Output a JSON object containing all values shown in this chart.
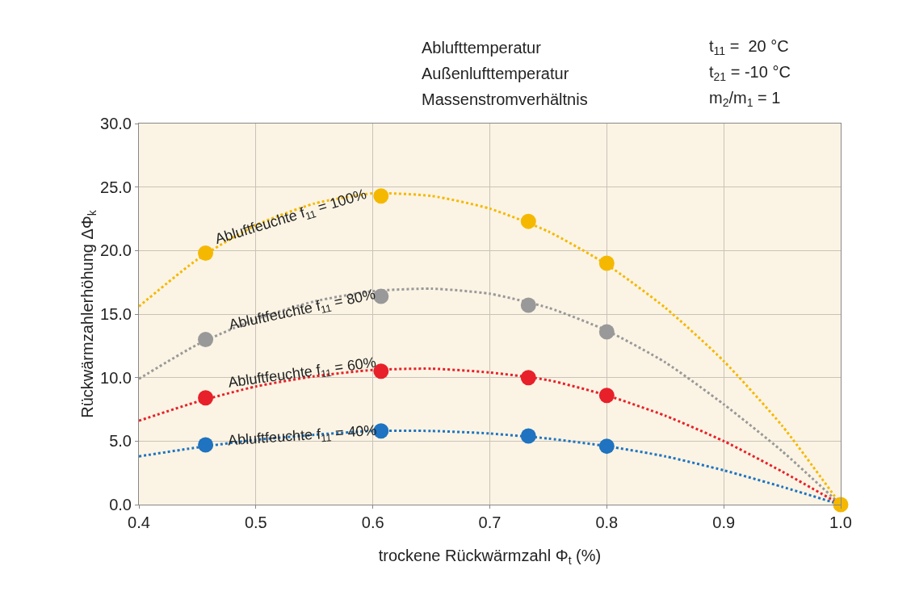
{
  "chart_data": {
    "type": "scatter",
    "xlabel": "trockene Rückwärmzahl Φ$_{t}$ (%)",
    "ylabel": "Rückwärmzahlerhöhung ΔΦ$_{k}$",
    "xlim": [
      0.4,
      1.0
    ],
    "xticks": [
      0.4,
      0.5,
      0.6,
      0.7,
      0.8,
      0.9,
      {
        "value": 1.0,
        "label": "1.0"
      }
    ],
    "ylim": [
      0,
      30
    ],
    "yticks": [
      {
        "value": 0,
        "label": "0.0"
      },
      {
        "value": 5,
        "label": "5.0"
      },
      {
        "value": 10,
        "label": "10.0"
      },
      {
        "value": 15,
        "label": "15.0"
      },
      {
        "value": 20,
        "label": "20.0"
      },
      {
        "value": 25,
        "label": "25.0"
      },
      {
        "value": 30,
        "label": "30.0"
      }
    ],
    "grid": true,
    "series": [
      {
        "type": "line",
        "color": "#f5b800",
        "line_style": "dotted",
        "marker": "none",
        "x": [
          0.4,
          0.45,
          0.5,
          0.55,
          0.6,
          0.65,
          0.7,
          0.75,
          0.8,
          0.85,
          0.9,
          0.95,
          1.0
        ],
        "values": [
          15.6,
          19.3,
          22.0,
          23.7,
          24.5,
          24.3,
          23.3,
          21.5,
          18.9,
          15.5,
          11.3,
          6.2,
          0
        ]
      },
      {
        "type": "line",
        "color": "#999999",
        "line_style": "dotted",
        "marker": "none",
        "x": [
          0.4,
          0.45,
          0.5,
          0.55,
          0.6,
          0.65,
          0.7,
          0.75,
          0.8,
          0.85,
          0.9,
          0.95,
          1.0
        ],
        "values": [
          9.9,
          12.6,
          14.6,
          16.0,
          16.8,
          17.0,
          16.6,
          15.5,
          13.7,
          11.2,
          7.9,
          4.2,
          0
        ]
      },
      {
        "type": "line",
        "color": "#e8202a",
        "line_style": "dotted",
        "marker": "none",
        "x": [
          0.4,
          0.45,
          0.5,
          0.55,
          0.6,
          0.65,
          0.7,
          0.75,
          0.8,
          0.85,
          0.9,
          0.95,
          1.0
        ],
        "values": [
          6.6,
          8.1,
          9.3,
          10.1,
          10.6,
          10.7,
          10.4,
          9.8,
          8.6,
          7.0,
          5.0,
          2.6,
          0
        ]
      },
      {
        "type": "line",
        "color": "#1f73c0",
        "line_style": "dotted",
        "marker": "none",
        "x": [
          0.4,
          0.45,
          0.5,
          0.55,
          0.6,
          0.65,
          0.7,
          0.75,
          0.8,
          0.85,
          0.9,
          0.95,
          1.0
        ],
        "values": [
          3.8,
          4.5,
          5.1,
          5.5,
          5.8,
          5.8,
          5.6,
          5.2,
          4.6,
          3.8,
          2.7,
          1.4,
          0
        ]
      },
      {
        "type": "scatter",
        "color": "#999999",
        "marker": "circle",
        "x": [
          0.457,
          0.607,
          0.733,
          0.8
        ],
        "values": [
          13.0,
          16.4,
          15.7,
          13.6
        ]
      },
      {
        "type": "scatter",
        "color": "#e8202a",
        "marker": "circle",
        "x": [
          0.457,
          0.607,
          0.733,
          0.8
        ],
        "values": [
          8.4,
          10.5,
          10.0,
          8.6
        ]
      },
      {
        "type": "scatter",
        "color": "#1f73c0",
        "marker": "circle",
        "x": [
          0.457,
          0.607,
          0.733,
          0.8
        ],
        "values": [
          4.7,
          5.8,
          5.4,
          4.6
        ]
      },
      {
        "type": "scatter",
        "color": "#f5b800",
        "marker": "circle",
        "x": [
          0.457,
          0.607,
          0.733,
          0.8,
          1.0
        ],
        "values": [
          19.8,
          24.3,
          22.3,
          19.0,
          0
        ]
      }
    ],
    "annotations": [
      "Abluftfeuchte f$_{11}$ = 100%",
      "Abluftfeuchte f$_{11}$ = 80%",
      "Abluftfeuchte f$_{11}$ = 60%",
      "Abluftfeuchte f$_{11}$ = 40%",
      "Ablufttemperatur",
      "t$_{11}$ =  20 °C",
      "Außenlufttemperatur",
      "t$_{21}$ = -10 °C",
      "Massenstromverhältnis",
      "m$_{2}$/m$_{1}$ = 1"
    ]
  }
}
